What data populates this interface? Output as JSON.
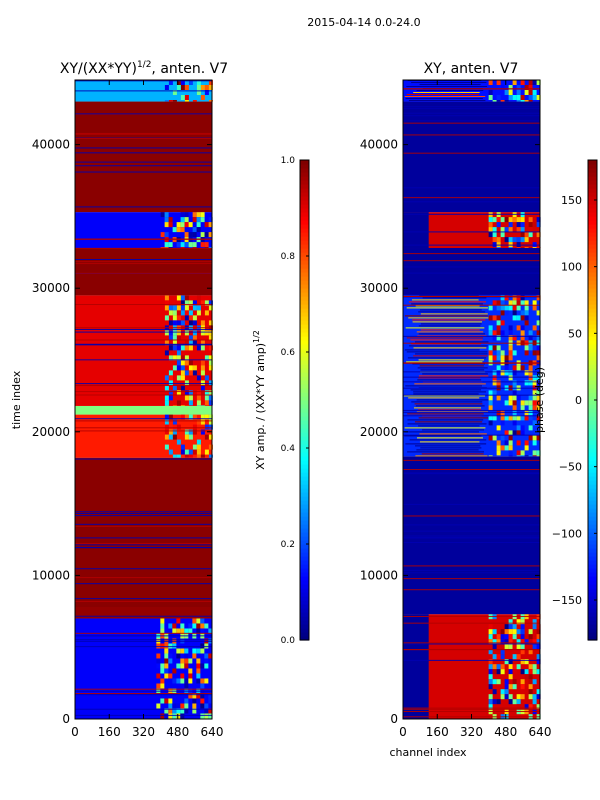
{
  "figure": {
    "suptitle": "2015-04-14 0.0-24.0"
  },
  "chart_data": [
    {
      "type": "heatmap",
      "title_main": "XY/(XX*YY)",
      "title_exp": "1/2",
      "title_tail": ", anten. V7",
      "xlabel": "",
      "ylabel": "time index",
      "xticks": [
        0,
        160,
        320,
        480,
        640
      ],
      "yticks": [
        0,
        10000,
        20000,
        30000,
        40000
      ],
      "xlim": [
        0,
        640
      ],
      "ylim": [
        0,
        44500
      ],
      "colorbar": {
        "label_main": "XY amp. / (XX*YY amp)",
        "label_exp": "1/2",
        "range": [
          0.0,
          1.0
        ],
        "ticks": [
          "0.0",
          "0.2",
          "0.4",
          "0.6",
          "0.8",
          "1.0"
        ],
        "colormap": "jet"
      },
      "bands": [
        {
          "t": [
            0,
            7000
          ],
          "value": 0.12,
          "pattern_start_channel": 380
        },
        {
          "t": [
            7000,
            7800
          ],
          "value": 0.98
        },
        {
          "t": [
            7800,
            18200
          ],
          "value": 0.99
        },
        {
          "t": [
            18200,
            21200
          ],
          "value": 0.85,
          "pattern_start_channel": 420
        },
        {
          "t": [
            21200,
            21800
          ],
          "value": 0.5
        },
        {
          "t": [
            21800,
            29500
          ],
          "value": 0.9,
          "pattern_start_channel": 420
        },
        {
          "t": [
            29500,
            32800
          ],
          "value": 0.99
        },
        {
          "t": [
            32800,
            35300
          ],
          "value": 0.12,
          "pattern_start_channel": 400
        },
        {
          "t": [
            35300,
            43000
          ],
          "value": 0.99
        },
        {
          "t": [
            43000,
            44500
          ],
          "value": 0.3,
          "pattern_start_channel": 420
        }
      ]
    },
    {
      "type": "heatmap",
      "title": "XY, anten. V7",
      "xlabel": "channel index",
      "ylabel": "",
      "xticks": [
        0,
        160,
        320,
        480,
        640
      ],
      "yticks": [
        0,
        10000,
        20000,
        30000,
        40000
      ],
      "xlim": [
        0,
        640
      ],
      "ylim": [
        0,
        44500
      ],
      "colorbar": {
        "label": "phase (deg)",
        "range": [
          -180,
          180
        ],
        "ticks": [
          "−150",
          "−100",
          "−50",
          "0",
          "50",
          "100",
          "150"
        ],
        "colormap": "jet"
      },
      "bands": [
        {
          "t": [
            0,
            7300
          ],
          "value": 150,
          "left_value": -170,
          "left_until_channel": 120,
          "pattern_start_channel": 400
        },
        {
          "t": [
            7300,
            18300
          ],
          "value": -170
        },
        {
          "t": [
            18300,
            29500
          ],
          "value": -120,
          "mixed": true,
          "pattern_start_channel": 400
        },
        {
          "t": [
            29500,
            32800
          ],
          "value": -170
        },
        {
          "t": [
            32800,
            35300
          ],
          "value": 150,
          "left_value": -170,
          "left_until_channel": 120,
          "pattern_start_channel": 400
        },
        {
          "t": [
            35300,
            43000
          ],
          "value": -170
        },
        {
          "t": [
            43000,
            44500
          ],
          "value": -130,
          "mixed": true,
          "pattern_start_channel": 400
        }
      ]
    }
  ]
}
